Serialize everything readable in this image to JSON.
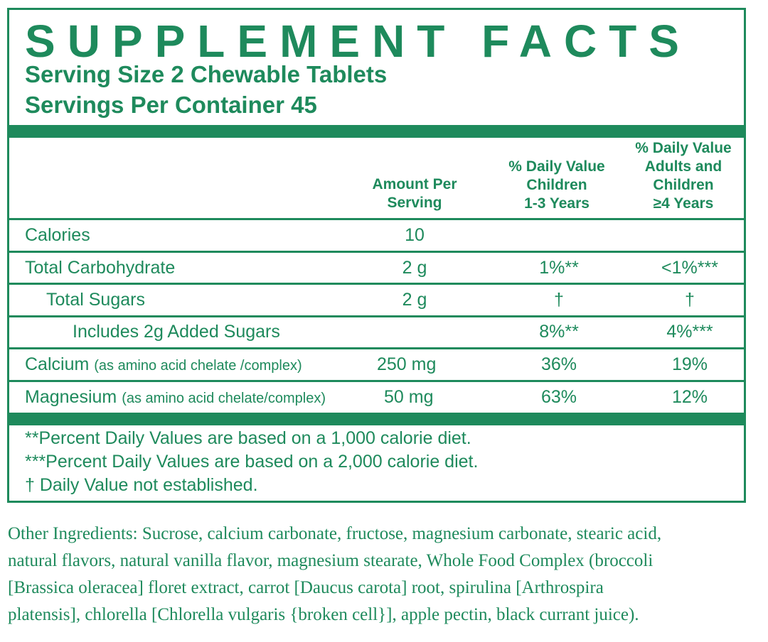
{
  "title": "SUPPLEMENT FACTS",
  "serving_size": "Serving Size 2 Chewable Tablets",
  "servings_per_container": "Servings Per Container 45",
  "header": {
    "amount": [
      "Amount Per",
      "Serving"
    ],
    "dv_children": [
      "% Daily Value",
      "Children",
      "1-3 Years"
    ],
    "dv_adults": [
      "% Daily Value",
      "Adults and",
      "Children",
      "≥4 Years"
    ]
  },
  "rows": [
    {
      "name": "Calories",
      "detail": "",
      "amount": "10",
      "dv_children": "",
      "dv_adults": ""
    },
    {
      "name": "Total Carbohydrate",
      "detail": "",
      "amount": "2 g",
      "dv_children": "1%**",
      "dv_adults": "<1%***"
    },
    {
      "name": "Total Sugars",
      "detail": "",
      "amount": "2 g",
      "dv_children": "†",
      "dv_adults": "†"
    },
    {
      "name": "Includes 2g Added Sugars",
      "detail": "",
      "amount": "",
      "dv_children": "8%**",
      "dv_adults": "4%***"
    },
    {
      "name": "Calcium",
      "detail": "(as amino acid chelate /complex)",
      "amount": "250 mg",
      "dv_children": "36%",
      "dv_adults": "19%"
    },
    {
      "name": "Magnesium",
      "detail": "(as amino acid chelate/complex)",
      "amount": "50 mg",
      "dv_children": "63%",
      "dv_adults": "12%"
    }
  ],
  "footnotes": [
    "**Percent Daily Values are based on a 1,000 calorie diet.",
    "***Percent Daily Values are based on a 2,000 calorie diet.",
    "† Daily Value not established."
  ],
  "other_ingredients": [
    "Other Ingredients: Sucrose, calcium carbonate, fructose, magnesium carbonate, stearic acid,",
    "natural flavors, natural vanilla flavor, magnesium stearate, Whole Food Complex (broccoli",
    "[Brassica oleracea] floret extract, carrot [Daucus carota] root, spirulina [Arthrospira",
    "platensis], chlorella [Chlorella vulgaris {broken cell}], apple pectin, black currant juice)."
  ],
  "colors": {
    "brand_green": "#1e8a5c"
  }
}
